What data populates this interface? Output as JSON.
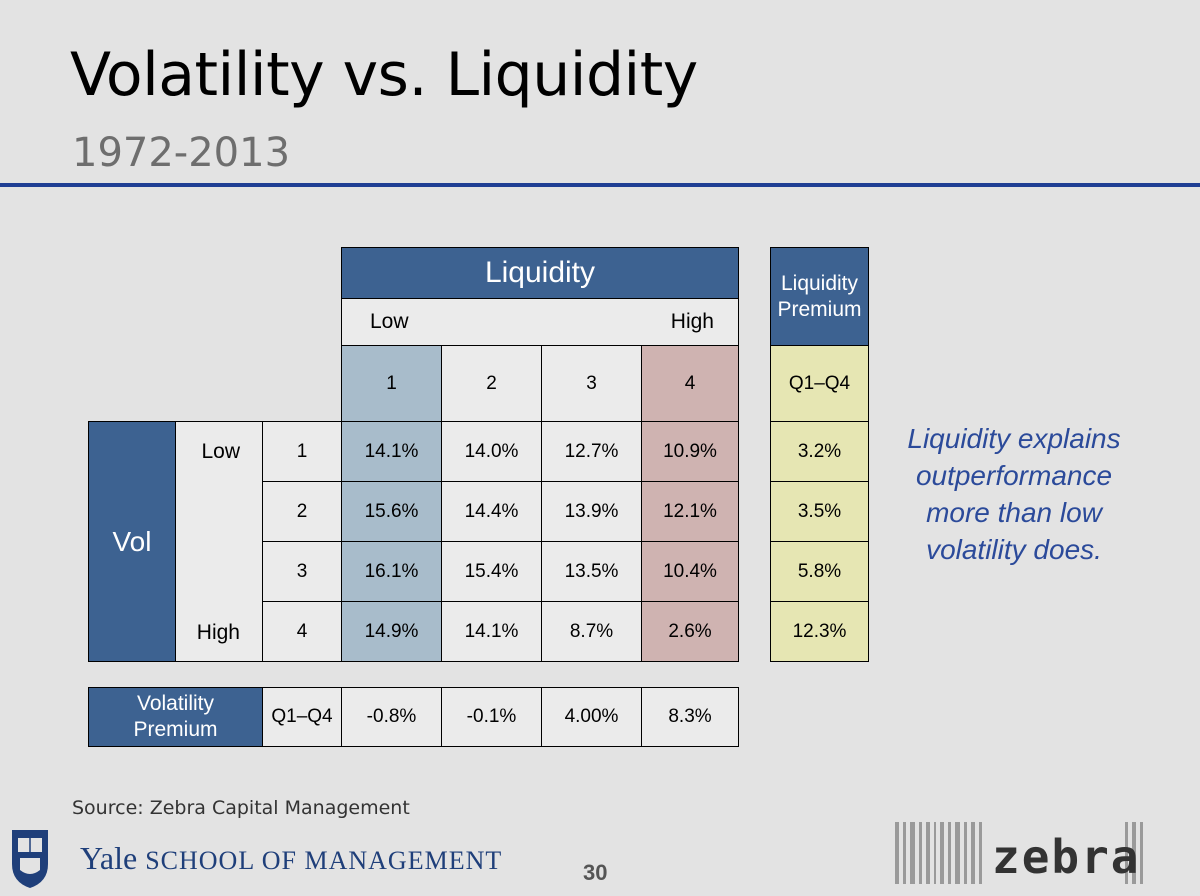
{
  "slide": {
    "title": "Volatility vs. Liquidity",
    "subtitle": "1972-2013",
    "accent_color": "#1f3f94"
  },
  "table": {
    "liquidity_header": "Liquidity",
    "liq_low_label": "Low",
    "liq_high_label": "High",
    "quartiles": [
      "1",
      "2",
      "3",
      "4"
    ],
    "vol_label": "Vol",
    "vol_low_label": "Low",
    "vol_high_label": "High",
    "rows": [
      {
        "q": "1",
        "values": [
          "14.1%",
          "14.0%",
          "12.7%",
          "10.9%"
        ],
        "liq_premium": "3.2%"
      },
      {
        "q": "2",
        "values": [
          "15.6%",
          "14.4%",
          "13.9%",
          "12.1%"
        ],
        "liq_premium": "3.5%"
      },
      {
        "q": "3",
        "values": [
          "16.1%",
          "15.4%",
          "13.5%",
          "10.4%"
        ],
        "liq_premium": "5.8%"
      },
      {
        "q": "4",
        "values": [
          "14.9%",
          "14.1%",
          "8.7%",
          "2.6%"
        ],
        "liq_premium": "12.3%"
      }
    ],
    "liquidity_premium_header": "Liquidity Premium",
    "liquidity_premium_sub": "Q1–Q4",
    "volatility_premium_label": "Volatility Premium",
    "volatility_premium_sub": "Q1–Q4",
    "volatility_premium_values": [
      "-0.8%",
      "-0.1%",
      "4.00%",
      "8.3%"
    ],
    "colors": {
      "header_blue": "#3d6291",
      "low_liq_col": "#a8bccb",
      "high_liq_col": "#cfb3b1",
      "premium_yellow": "#e6e6b3"
    }
  },
  "callout": "Liquidity explains outperformance more than low volatility does.",
  "footer": {
    "source": "Source: Zebra Capital Management",
    "yale_name": "Yale",
    "yale_school": "SCHOOL OF MANAGEMENT",
    "page_number": "30",
    "zebra_logo_text": "zebra"
  }
}
